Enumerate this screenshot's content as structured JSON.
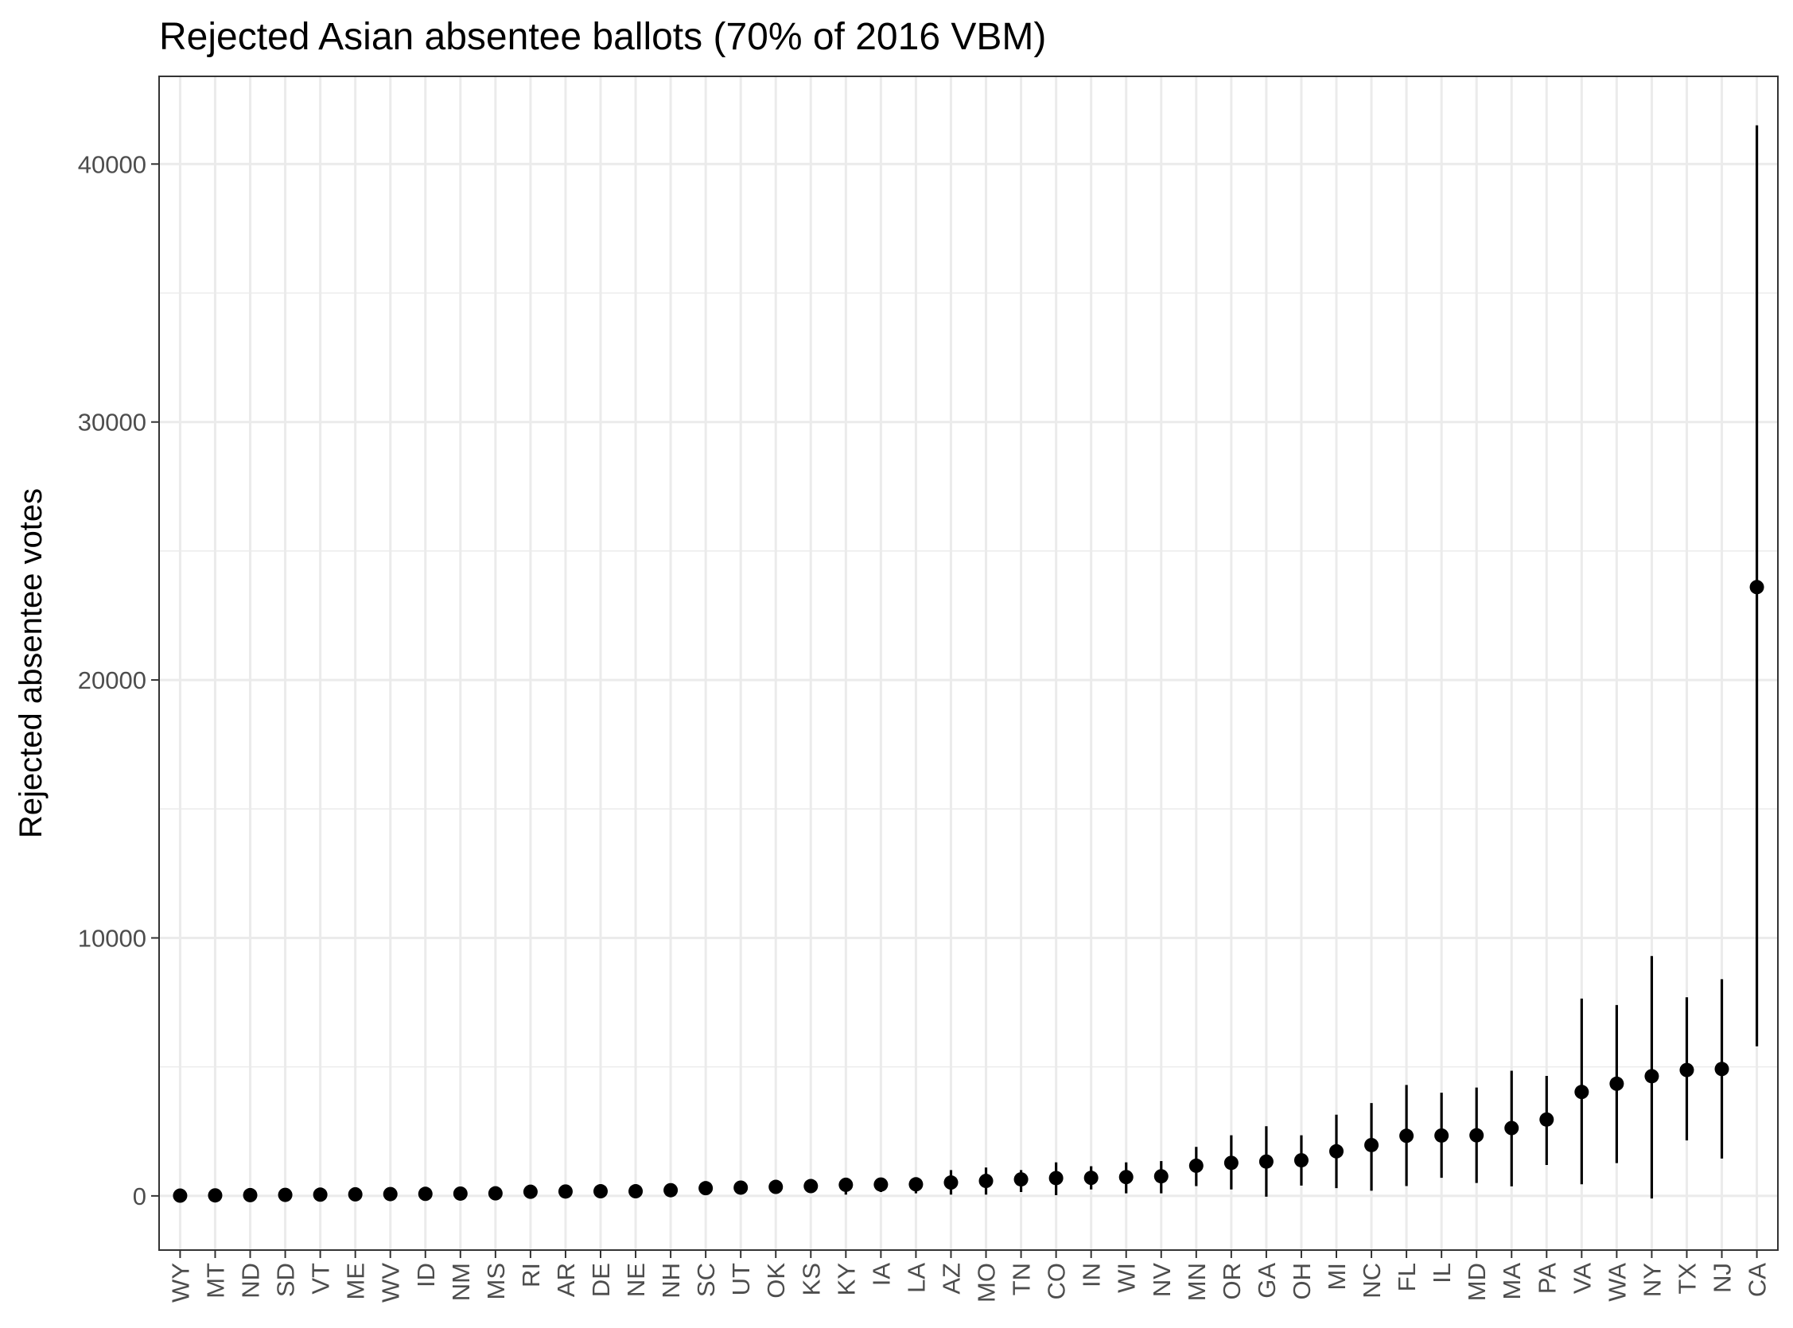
{
  "chart_data": {
    "type": "scatter",
    "title": "Rejected Asian absentee ballots (70% of 2016 VBM)",
    "xlabel": "",
    "ylabel": "Rejected absentee votes",
    "yticks": [
      "0",
      "10000",
      "20000",
      "30000",
      "40000"
    ],
    "ylim": [
      -2100,
      43400
    ],
    "grid": true,
    "colors": {
      "marks": "#000000",
      "grid": "#ebebeb",
      "panel_border": "#333333"
    },
    "categories": [
      "WY",
      "MT",
      "ND",
      "SD",
      "VT",
      "ME",
      "WV",
      "ID",
      "NM",
      "MS",
      "RI",
      "AR",
      "DE",
      "NE",
      "NH",
      "SC",
      "UT",
      "OK",
      "KS",
      "KY",
      "IA",
      "LA",
      "AZ",
      "MO",
      "TN",
      "CO",
      "IN",
      "WI",
      "NV",
      "MN",
      "OR",
      "GA",
      "OH",
      "MI",
      "NC",
      "FL",
      "IL",
      "MD",
      "MA",
      "PA",
      "VA",
      "WA",
      "NY",
      "TX",
      "NJ",
      "CA"
    ],
    "values": [
      10,
      20,
      30,
      40,
      50,
      60,
      70,
      80,
      90,
      100,
      160,
      170,
      180,
      180,
      220,
      300,
      320,
      350,
      380,
      430,
      440,
      450,
      520,
      580,
      640,
      690,
      700,
      730,
      760,
      1170,
      1280,
      1330,
      1380,
      1730,
      1970,
      2330,
      2340,
      2350,
      2630,
      2960,
      4030,
      4350,
      4640,
      4880,
      4920,
      23600
    ],
    "lower": [
      0,
      0,
      0,
      0,
      0,
      0,
      0,
      0,
      0,
      0,
      50,
      50,
      50,
      50,
      80,
      150,
      150,
      150,
      150,
      50,
      150,
      100,
      50,
      50,
      150,
      30,
      250,
      100,
      100,
      380,
      250,
      -30,
      400,
      300,
      200,
      380,
      700,
      500,
      370,
      1200,
      450,
      1270,
      -100,
      2150,
      1450,
      5800
    ],
    "upper": [
      30,
      50,
      70,
      80,
      100,
      120,
      150,
      170,
      180,
      200,
      300,
      300,
      300,
      300,
      350,
      450,
      500,
      550,
      600,
      700,
      700,
      700,
      1000,
      1100,
      1000,
      1300,
      1150,
      1300,
      1350,
      1900,
      2350,
      2700,
      2350,
      3150,
      3600,
      4300,
      4000,
      4200,
      4850,
      4650,
      7650,
      7400,
      9300,
      7700,
      8400,
      41500
    ]
  }
}
